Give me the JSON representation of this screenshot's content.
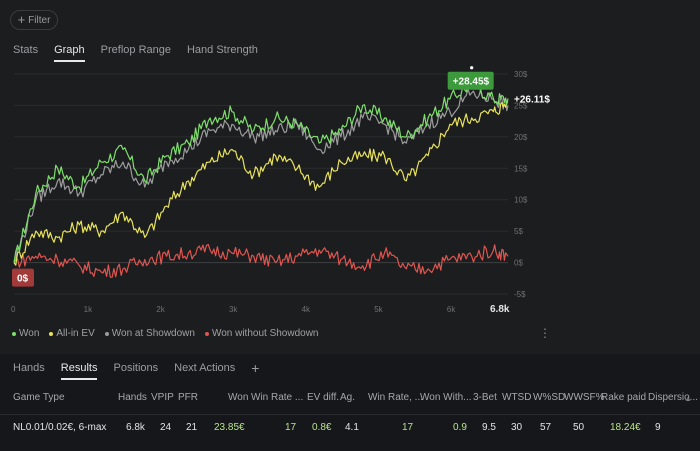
{
  "filter": {
    "label": "Filter"
  },
  "tabs_top": [
    "Stats",
    "Graph",
    "Preflop Range",
    "Hand Strength"
  ],
  "tabs_bottom": [
    "Hands",
    "Results",
    "Positions",
    "Next Actions"
  ],
  "legend": [
    {
      "label": "Won",
      "color": "#7ee06b"
    },
    {
      "label": "All-in EV",
      "color": "#e8e25a"
    },
    {
      "label": "Won at Showdown",
      "color": "#9c9c9c"
    },
    {
      "label": "Won without Showdown",
      "color": "#e0554f"
    }
  ],
  "table": {
    "headers": [
      "Game Type",
      "Hands",
      "VPIP",
      "PFR",
      "Won",
      "Win Rate ...",
      "EV diff.",
      "Ag.",
      "Win Rate, ...",
      "Won With...",
      "3-Bet",
      "WTSD",
      "W%SD",
      "WWSF%",
      "Rake paid",
      "Dispersio..."
    ],
    "row": [
      "NL0.01/0.02€, 6-max",
      "6.8k",
      "24",
      "21",
      "23.85€",
      "17",
      "0.8€",
      "4.1",
      "17",
      "0.9",
      "9.5",
      "30",
      "57",
      "50",
      "18.24€",
      "9"
    ]
  },
  "chart_data": {
    "type": "line",
    "y_tick_labels": [
      "30$",
      "25$",
      "20$",
      "15$",
      "10$",
      "5$",
      "0$",
      "-5$"
    ],
    "x_tick_labels": [
      "0",
      "1k",
      "2k",
      "3k",
      "4k",
      "5k",
      "6k",
      "6.8k"
    ],
    "ylim": [
      -5,
      30
    ],
    "xlim": [
      0,
      6800
    ],
    "grid": true,
    "legend_position": "bottom-left",
    "x": [
      0,
      300,
      600,
      900,
      1200,
      1500,
      1800,
      2100,
      2400,
      2700,
      3000,
      3300,
      3600,
      3900,
      4200,
      4500,
      4800,
      5100,
      5400,
      5700,
      6000,
      6300,
      6600,
      6800
    ],
    "series": [
      {
        "name": "Won",
        "color": "#7ee06b",
        "values": [
          0,
          11,
          15,
          12,
          16,
          18,
          13,
          17,
          19,
          23,
          24,
          21,
          23,
          22,
          19,
          21,
          25,
          23,
          20,
          23,
          26,
          28.5,
          26,
          26.11
        ]
      },
      {
        "name": "All-in EV",
        "color": "#e8e25a",
        "values": [
          0,
          5,
          4,
          6,
          5,
          8,
          4,
          9,
          13,
          16,
          18,
          14,
          17,
          15,
          12,
          16,
          17,
          17,
          13,
          17,
          22,
          23,
          24,
          25.5
        ]
      },
      {
        "name": "Won at Showdown",
        "color": "#9c9c9c",
        "values": [
          0,
          10,
          13,
          11,
          14,
          16,
          12,
          16,
          18,
          21,
          22,
          20,
          21,
          22,
          18,
          20,
          23,
          22,
          19,
          22,
          24,
          27,
          26,
          25
        ]
      },
      {
        "name": "Won without Showdown",
        "color": "#e0554f",
        "values": [
          0,
          1,
          0.5,
          -0.5,
          -1.5,
          -1,
          0.5,
          1,
          1.5,
          2,
          1.5,
          1,
          0,
          1,
          2,
          0.5,
          -0.5,
          1.5,
          -1,
          -1,
          0.5,
          1,
          2,
          1
        ]
      }
    ],
    "annotations": [
      {
        "label": "+28.45$",
        "x": 6300,
        "y": 28.45
      },
      {
        "label": "+26.11$",
        "x": 6800,
        "y": 26.11
      },
      {
        "label": "0$",
        "x": 0,
        "y": 0
      }
    ]
  }
}
